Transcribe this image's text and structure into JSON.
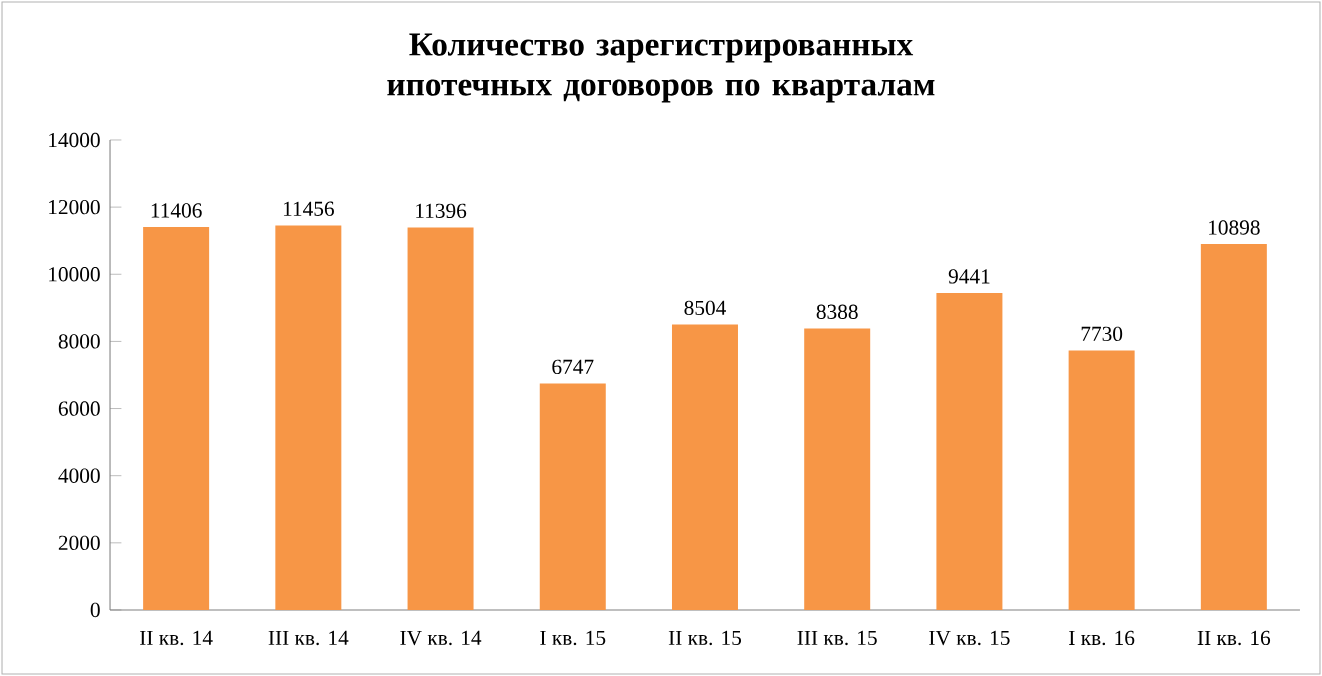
{
  "chart_data": {
    "type": "bar",
    "title": "Количество зарегистрированных ипотечных договоров по кварталам",
    "categories": [
      "II кв. 14",
      "III кв. 14",
      "IV кв. 14",
      "I кв. 15",
      "II кв. 15",
      "III кв. 15",
      "IV кв. 15",
      "I кв. 16",
      "II кв. 16"
    ],
    "values": [
      11406,
      11456,
      11396,
      6747,
      8504,
      8388,
      9441,
      7730,
      10898
    ],
    "color": "#f79646",
    "ylim": [
      0,
      14000
    ],
    "yticks": [
      0,
      2000,
      4000,
      6000,
      8000,
      10000,
      12000,
      14000
    ],
    "data_labels": true
  }
}
